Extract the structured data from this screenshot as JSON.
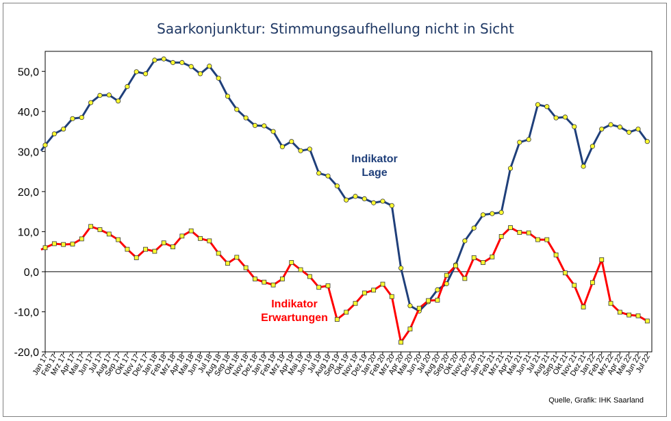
{
  "chart_data": {
    "type": "line",
    "title": "Saarkonjunktur: Stimmungsaufhellung nicht in Sicht",
    "source": "Quelle, Grafik: IHK Saarland",
    "xlabel": "",
    "ylabel": "",
    "ylim": [
      -20,
      55
    ],
    "yticks": [
      "-20,0",
      "-10,0",
      "0,0",
      "10,0",
      "20,0",
      "30,0",
      "40,0",
      "50,0"
    ],
    "grid": false,
    "legend": "none",
    "categories": [
      "Jan 17",
      "Feb 17",
      "Mrz 17",
      "Apr 17",
      "Mai 17",
      "Jun 17",
      "Jul 17",
      "Aug 17",
      "Sep 17",
      "Okt 17",
      "Nov 17",
      "Dez 17",
      "Jan 18",
      "Feb 18",
      "Mrz 18",
      "Apr 18",
      "Mai 18",
      "Jun 18",
      "Jul 18",
      "Aug 18",
      "Sep 18",
      "Okt 18",
      "Nov 18",
      "Dez 18",
      "Jan 19",
      "Feb 19",
      "Mrz 19",
      "Apr 19",
      "Mai 19",
      "Jun 19",
      "Jul 19",
      "Aug 19",
      "Sep 19",
      "Okt 19",
      "Nov 19",
      "Dez 19",
      "Jan 20",
      "Feb 20",
      "Mrz 20",
      "Apr 20",
      "Mai 20",
      "Jun 20",
      "Jul 20",
      "Aug 20",
      "Sep 20",
      "Okt 20",
      "Nov 20",
      "Dez 20",
      "Jan 21",
      "Feb 21",
      "Mrz 21",
      "Apr 21",
      "Mai 21",
      "Jun 21",
      "Jul 21",
      "Aug 21",
      "Sep 21",
      "Okt 21",
      "Nov 21",
      "Dez 21",
      "Jan 22",
      "Feb 22",
      "Mrz 22",
      "Apr 22",
      "Mai 22",
      "Jun 22",
      "Jul 22"
    ],
    "series": [
      {
        "name": "Indikator Lage",
        "label_lines": [
          "Indikator",
          "Lage"
        ],
        "color": "#1f3f7a",
        "marker": "circle",
        "marker_color": "#ffff33",
        "values": [
          31.6,
          34.4,
          35.6,
          38.2,
          38.5,
          42.2,
          44.0,
          44.1,
          42.6,
          46.2,
          49.9,
          49.4,
          52.8,
          53.1,
          52.2,
          52.2,
          51.2,
          49.4,
          51.3,
          48.3,
          43.8,
          40.5,
          38.4,
          36.5,
          36.4,
          35.0,
          31.2,
          32.5,
          30.2,
          30.6,
          24.6,
          23.9,
          21.4,
          17.9,
          18.8,
          18.2,
          17.2,
          17.6,
          16.5,
          0.9,
          -8.5,
          -9.8,
          -7.5,
          -4.5,
          -3.0,
          1.7,
          7.7,
          10.9,
          14.2,
          14.5,
          14.8,
          25.8,
          32.3,
          33.0,
          41.7,
          41.2,
          38.4,
          38.6,
          36.2,
          26.3,
          31.3,
          35.6,
          36.7,
          36.1,
          34.8,
          35.6,
          32.5
        ]
      },
      {
        "name": "Indikator Erwartungen",
        "label_lines": [
          "Indikator",
          "Erwartungen"
        ],
        "color": "#ff0000",
        "marker": "square",
        "marker_color": "#ffff33",
        "values": [
          6.0,
          7.0,
          6.8,
          6.9,
          8.2,
          11.3,
          10.5,
          9.4,
          8.0,
          5.6,
          3.5,
          5.6,
          5.1,
          7.2,
          6.2,
          8.9,
          10.2,
          8.3,
          7.7,
          4.6,
          2.1,
          3.6,
          1.0,
          -1.8,
          -2.6,
          -3.3,
          -1.8,
          2.3,
          0.5,
          -1.2,
          -3.9,
          -3.5,
          -11.9,
          -10.1,
          -7.9,
          -5.3,
          -4.6,
          -3.1,
          -6.2,
          -17.6,
          -14.3,
          -9.1,
          -7.2,
          -7.1,
          -0.9,
          1.5,
          -1.7,
          3.5,
          2.3,
          3.7,
          8.8,
          11.0,
          9.8,
          9.7,
          8.0,
          8.0,
          4.2,
          -0.3,
          -3.4,
          -8.8,
          -2.7,
          3.0,
          -7.9,
          -10.1,
          -10.8,
          -11.0,
          -12.3
        ]
      }
    ]
  }
}
